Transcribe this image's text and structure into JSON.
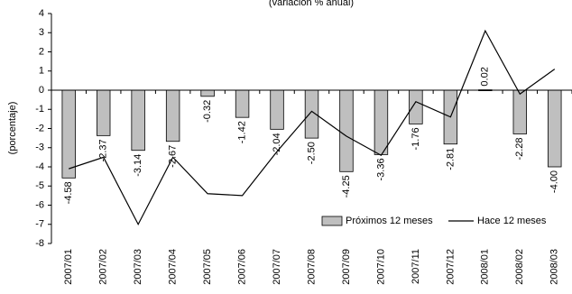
{
  "chart_data": {
    "type": "bar",
    "title": "(variación % anual)",
    "y_label": "(porcentaje)",
    "categories": [
      "2007/01",
      "2007/02",
      "2007/03",
      "2007/04",
      "2007/05",
      "2007/06",
      "2007/07",
      "2007/08",
      "2007/09",
      "2007/10",
      "2007/11",
      "2007/12",
      "2008/01",
      "2008/02",
      "2008/03"
    ],
    "series": [
      {
        "name": "Próximos 12 meses",
        "type": "bar",
        "color": "#bfbfbf",
        "values": [
          -4.58,
          -2.37,
          -3.14,
          -2.67,
          -0.32,
          -1.42,
          -2.04,
          -2.5,
          -4.25,
          -3.36,
          -1.76,
          -2.81,
          0.02,
          -2.28,
          -4.0
        ],
        "value_labels": [
          "-4.58",
          "-2.37",
          "-3.14",
          "-2.67",
          "-0.32",
          "-1.42",
          "-2.04",
          "-2.50",
          "-4.25",
          "-3.36",
          "-1.76",
          "-2.81",
          "0.02",
          "-2.28",
          "-4.00"
        ]
      },
      {
        "name": "Hace 12 meses",
        "type": "line",
        "color": "#000000",
        "values": [
          -4.1,
          -3.5,
          -7.0,
          -3.5,
          -5.4,
          -5.5,
          -3.2,
          -1.1,
          -2.4,
          -3.4,
          -0.6,
          -1.4,
          3.1,
          -0.2,
          1.1
        ]
      }
    ],
    "ylim": [
      -8,
      4
    ],
    "yticks": [
      -8,
      -7,
      -6,
      -5,
      -4,
      -3,
      -2,
      -1,
      0,
      1,
      2,
      3,
      4
    ],
    "grid": false,
    "legend": "bottom-right"
  }
}
